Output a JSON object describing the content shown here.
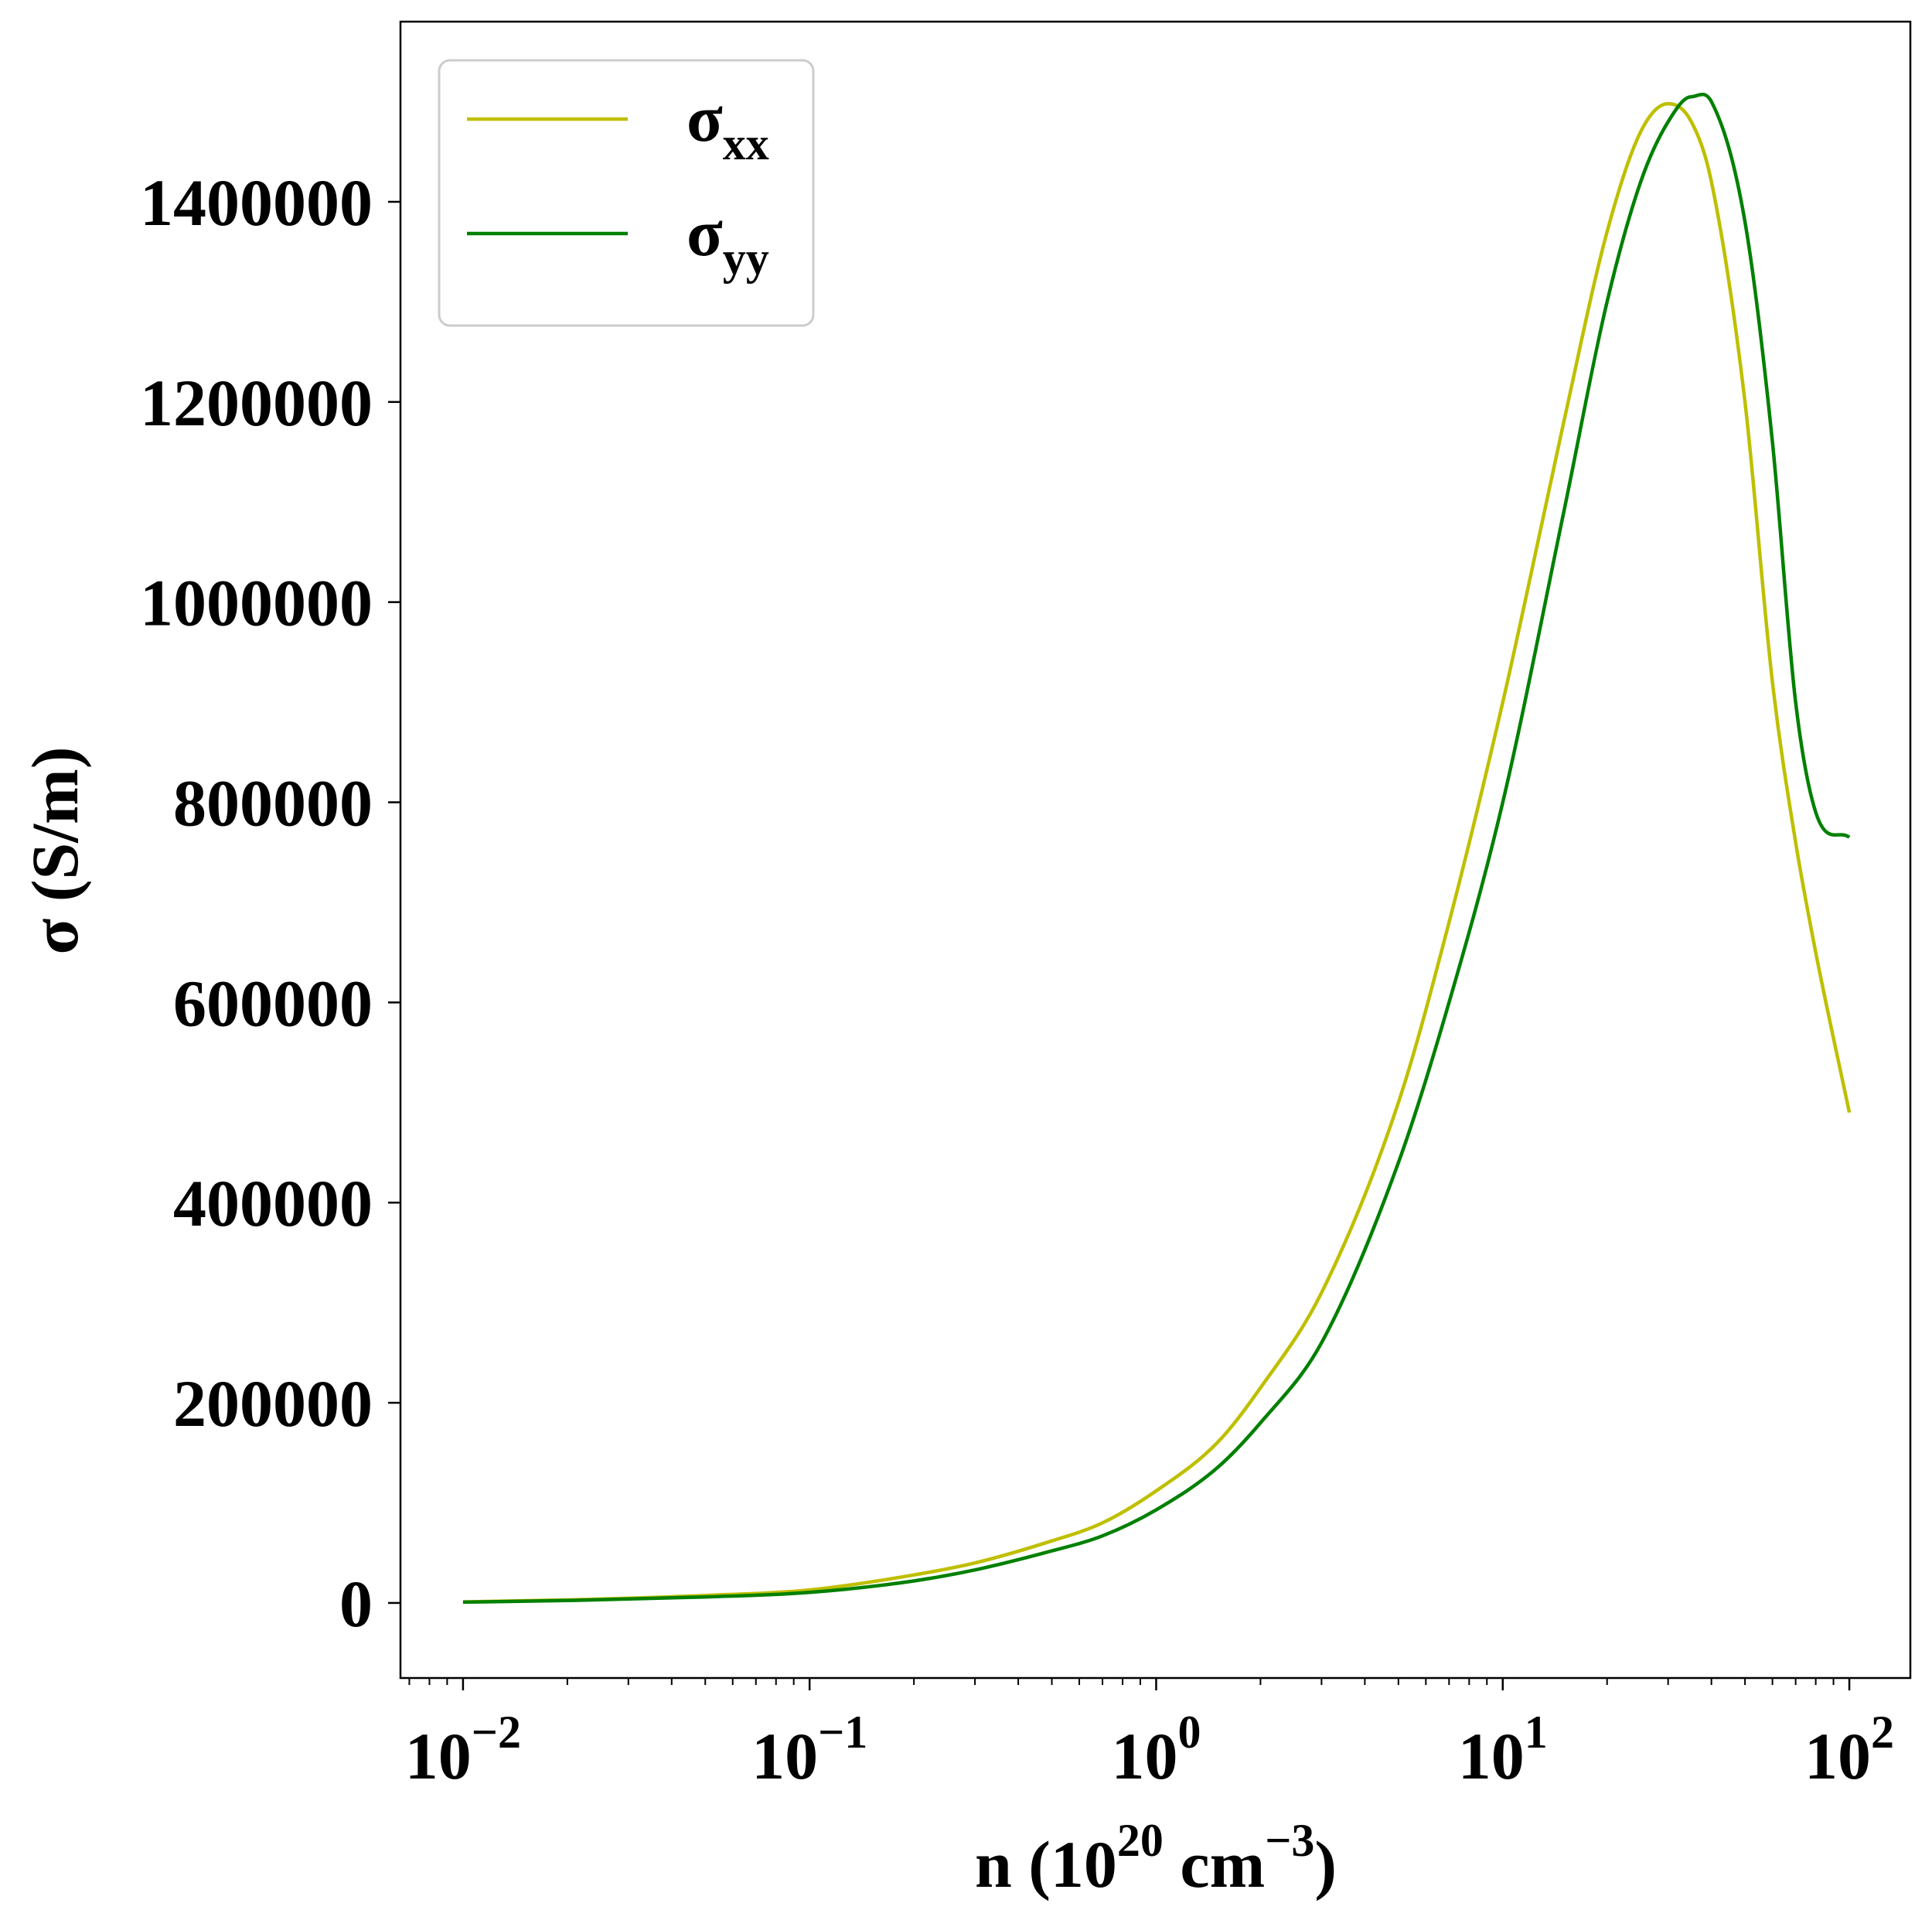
{
  "chart_data": {
    "type": "line",
    "xlabel": "n (10^20 cm^-3)",
    "xlabel_parts": {
      "main": "n (10",
      "exp1": "20",
      "mid": " cm",
      "exp2": "−3",
      "end": ")"
    },
    "ylabel": "σ (S/m)",
    "x_scale": "log",
    "xlim": [
      0.0066,
      150
    ],
    "ylim": [
      -75000,
      1580000
    ],
    "x_ticks": [
      {
        "value": 0.01,
        "base": "10",
        "exp": "−2"
      },
      {
        "value": 0.1,
        "base": "10",
        "exp": "−1"
      },
      {
        "value": 1,
        "base": "10",
        "exp": "0"
      },
      {
        "value": 10,
        "base": "10",
        "exp": "1"
      },
      {
        "value": 100,
        "base": "10",
        "exp": "2"
      }
    ],
    "y_ticks": [
      "0",
      "200000",
      "400000",
      "600000",
      "800000",
      "1000000",
      "1200000",
      "1400000"
    ],
    "y_tick_values": [
      0,
      200000,
      400000,
      600000,
      800000,
      1000000,
      1200000,
      1400000
    ],
    "grid": false,
    "legend_position": "top-left",
    "series": [
      {
        "name": "σxx",
        "name_base": "σ",
        "name_sub": "xx",
        "color": "#bfbf00",
        "points": [
          [
            0.01,
            1000
          ],
          [
            0.02,
            3000
          ],
          [
            0.05,
            7500
          ],
          [
            0.1,
            13000
          ],
          [
            0.2,
            28000
          ],
          [
            0.3,
            40000
          ],
          [
            0.5,
            62000
          ],
          [
            0.7,
            80000
          ],
          [
            1,
            112000
          ],
          [
            1.5,
            160000
          ],
          [
            2,
            215000
          ],
          [
            3,
            310000
          ],
          [
            5,
            500000
          ],
          [
            7,
            680000
          ],
          [
            10,
            900000
          ],
          [
            13,
            1080000
          ],
          [
            15,
            1180000
          ],
          [
            20,
            1370000
          ],
          [
            25,
            1470000
          ],
          [
            30,
            1498000
          ],
          [
            35,
            1480000
          ],
          [
            40,
            1420000
          ],
          [
            50,
            1200000
          ],
          [
            60,
            920000
          ],
          [
            70,
            760000
          ],
          [
            80,
            650000
          ],
          [
            100,
            490000
          ]
        ]
      },
      {
        "name": "σyy",
        "name_base": "σ",
        "name_sub": "yy",
        "color": "#008000",
        "points": [
          [
            0.01,
            800
          ],
          [
            0.02,
            2400
          ],
          [
            0.05,
            6000
          ],
          [
            0.1,
            10500
          ],
          [
            0.2,
            22000
          ],
          [
            0.3,
            33000
          ],
          [
            0.5,
            52000
          ],
          [
            0.7,
            67000
          ],
          [
            1,
            93000
          ],
          [
            1.5,
            135000
          ],
          [
            2,
            180000
          ],
          [
            3,
            260000
          ],
          [
            5,
            440000
          ],
          [
            7,
            600000
          ],
          [
            10,
            800000
          ],
          [
            15,
            1090000
          ],
          [
            20,
            1300000
          ],
          [
            25,
            1420000
          ],
          [
            30,
            1480000
          ],
          [
            35,
            1505000
          ],
          [
            40,
            1500000
          ],
          [
            50,
            1380000
          ],
          [
            60,
            1160000
          ],
          [
            70,
            900000
          ],
          [
            80,
            790000
          ],
          [
            100,
            765000
          ]
        ]
      }
    ]
  }
}
